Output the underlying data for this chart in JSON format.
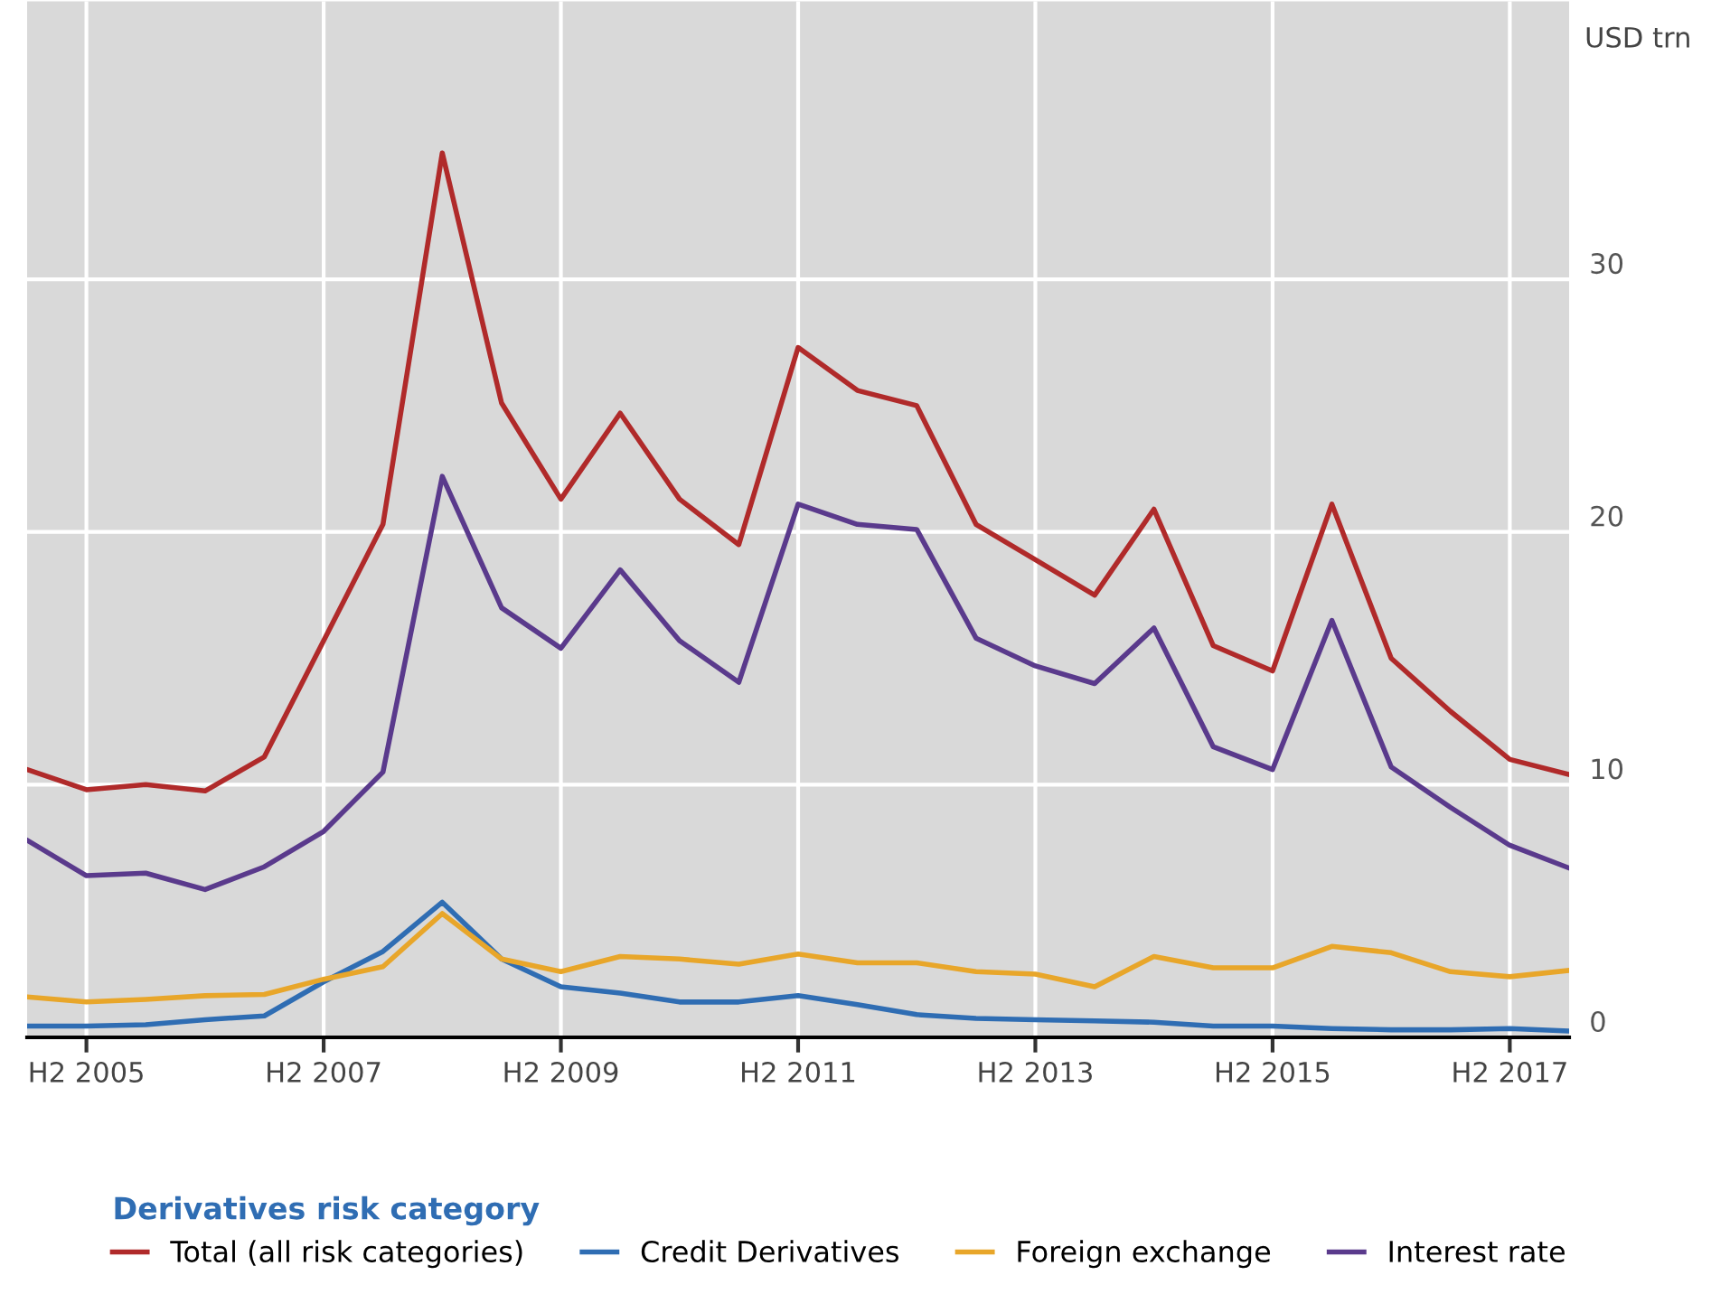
{
  "chart_data": {
    "type": "line",
    "ylabel": "USD trn",
    "legend_title": "Derivatives risk category",
    "categories": [
      null,
      "H2 2005",
      null,
      null,
      null,
      "H2 2007",
      null,
      null,
      null,
      "H2 2009",
      null,
      null,
      null,
      "H2 2011",
      null,
      null,
      null,
      "H2 2013",
      null,
      null,
      null,
      "H2 2015",
      null,
      null,
      null,
      "H2 2017",
      null
    ],
    "series": [
      {
        "name": "Total (all risk categories)",
        "color": "#b02a2a",
        "values": [
          10.6,
          9.8,
          10.0,
          9.75,
          11.1,
          15.7,
          20.3,
          35.0,
          25.1,
          21.3,
          24.7,
          21.3,
          19.5,
          27.3,
          25.6,
          25.0,
          20.3,
          18.9,
          17.5,
          20.9,
          15.5,
          14.5,
          21.1,
          15.0,
          12.9,
          11.0,
          10.4
        ]
      },
      {
        "name": "Credit Derivatives",
        "color": "#2f6db3",
        "values": [
          0.45,
          0.45,
          0.5,
          0.7,
          0.85,
          2.2,
          3.4,
          5.35,
          3.1,
          2.0,
          1.75,
          1.4,
          1.4,
          1.65,
          1.3,
          0.9,
          0.75,
          0.7,
          0.65,
          0.6,
          0.45,
          0.45,
          0.35,
          0.3,
          0.3,
          0.35,
          0.25
        ]
      },
      {
        "name": "Foreign exchange",
        "color": "#e8a62a",
        "values": [
          1.6,
          1.4,
          1.5,
          1.65,
          1.7,
          2.3,
          2.8,
          4.9,
          3.1,
          2.6,
          3.2,
          3.1,
          2.9,
          3.3,
          2.95,
          2.95,
          2.6,
          2.5,
          2.0,
          3.2,
          2.75,
          2.75,
          3.6,
          3.35,
          2.6,
          2.4,
          2.65
        ]
      },
      {
        "name": "Interest rate",
        "color": "#5a3a8c",
        "values": [
          7.8,
          6.4,
          6.5,
          5.85,
          6.75,
          8.15,
          10.5,
          22.2,
          17.0,
          15.4,
          18.5,
          15.7,
          14.05,
          21.1,
          20.3,
          20.1,
          15.8,
          14.7,
          14.0,
          16.2,
          11.5,
          10.6,
          16.5,
          10.7,
          9.1,
          7.6,
          6.7
        ]
      }
    ],
    "ylim": [
      0,
      41
    ],
    "yticks": [
      0,
      10,
      20,
      30
    ],
    "grid": true,
    "legend": "bottom",
    "marker": "none",
    "line_style": "solid"
  }
}
